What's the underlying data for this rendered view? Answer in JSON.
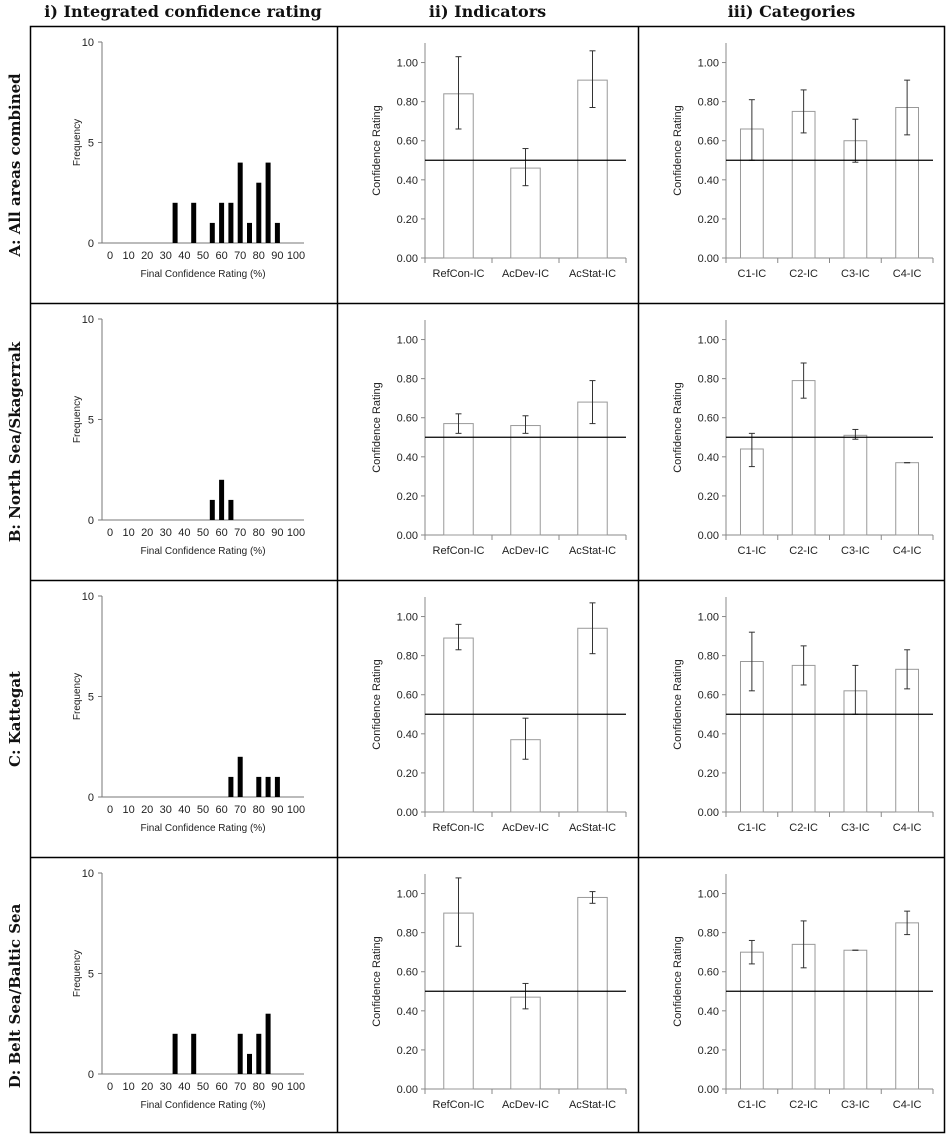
{
  "column_headers": [
    "i) Integrated confidence rating",
    "ii) Indicators",
    "iii) Categories"
  ],
  "row_headers": [
    "A: All areas combined",
    "B: North Sea/Skagerrak",
    "C: Kattegat",
    "D: Belt Sea/Baltic Sea"
  ],
  "chart_data": [
    {
      "id": "A-i",
      "type": "bar",
      "xlabel": "Final Confidence Rating (%)",
      "ylabel": "Frequency",
      "ylim": [
        0,
        10
      ],
      "yticks": [
        "0",
        "5",
        "10"
      ],
      "xticks": [
        "0",
        "10",
        "20",
        "30",
        "40",
        "50",
        "60",
        "70",
        "80",
        "90",
        "100"
      ],
      "x": [
        35,
        45,
        55,
        60,
        65,
        70,
        75,
        80,
        85,
        90
      ],
      "values": [
        2,
        2,
        1,
        2,
        2,
        4,
        1,
        3,
        4,
        1
      ]
    },
    {
      "id": "A-ii",
      "type": "bar",
      "ylabel": "Confidence Rating",
      "ylim": [
        0,
        1.1
      ],
      "yticks": [
        "0.00",
        "0.20",
        "0.40",
        "0.60",
        "0.80",
        "1.00"
      ],
      "reference_line": 0.5,
      "categories": [
        "RefCon-IC",
        "AcDev-IC",
        "AcStat-IC"
      ],
      "values": [
        0.84,
        0.46,
        0.91
      ],
      "err_low": [
        0.66,
        0.37,
        0.77
      ],
      "err_high": [
        1.03,
        0.56,
        1.06
      ]
    },
    {
      "id": "A-iii",
      "type": "bar",
      "ylabel": "Confidence Rating",
      "ylim": [
        0,
        1.1
      ],
      "yticks": [
        "0.00",
        "0.20",
        "0.40",
        "0.60",
        "0.80",
        "1.00"
      ],
      "reference_line": 0.5,
      "categories": [
        "C1-IC",
        "C2-IC",
        "C3-IC",
        "C4-IC"
      ],
      "values": [
        0.66,
        0.75,
        0.6,
        0.77
      ],
      "err_low": [
        0.5,
        0.64,
        0.49,
        0.63
      ],
      "err_high": [
        0.81,
        0.86,
        0.71,
        0.91
      ]
    },
    {
      "id": "B-i",
      "type": "bar",
      "xlabel": "Final Confidence Rating (%)",
      "ylabel": "Frequency",
      "ylim": [
        0,
        10
      ],
      "yticks": [
        "0",
        "5",
        "10"
      ],
      "xticks": [
        "0",
        "10",
        "20",
        "30",
        "40",
        "50",
        "60",
        "70",
        "80",
        "90",
        "100"
      ],
      "x": [
        55,
        60,
        65
      ],
      "values": [
        1,
        2,
        1
      ]
    },
    {
      "id": "B-ii",
      "type": "bar",
      "ylabel": "Confidence Rating",
      "ylim": [
        0,
        1.1
      ],
      "yticks": [
        "0.00",
        "0.20",
        "0.40",
        "0.60",
        "0.80",
        "1.00"
      ],
      "reference_line": 0.5,
      "categories": [
        "RefCon-IC",
        "AcDev-IC",
        "AcStat-IC"
      ],
      "values": [
        0.57,
        0.56,
        0.68
      ],
      "err_low": [
        0.52,
        0.52,
        0.57
      ],
      "err_high": [
        0.62,
        0.61,
        0.79
      ]
    },
    {
      "id": "B-iii",
      "type": "bar",
      "ylabel": "Confidence Rating",
      "ylim": [
        0,
        1.1
      ],
      "yticks": [
        "0.00",
        "0.20",
        "0.40",
        "0.60",
        "0.80",
        "1.00"
      ],
      "reference_line": 0.5,
      "categories": [
        "C1-IC",
        "C2-IC",
        "C3-IC",
        "C4-IC"
      ],
      "values": [
        0.44,
        0.79,
        0.51,
        0.37
      ],
      "err_low": [
        0.35,
        0.7,
        0.49,
        0.37
      ],
      "err_high": [
        0.52,
        0.88,
        0.54,
        0.37
      ]
    },
    {
      "id": "C-i",
      "type": "bar",
      "xlabel": "Final Confidence Rating (%)",
      "ylabel": "Frequency",
      "ylim": [
        0,
        10
      ],
      "yticks": [
        "0",
        "5",
        "10"
      ],
      "xticks": [
        "0",
        "10",
        "20",
        "30",
        "40",
        "50",
        "60",
        "70",
        "80",
        "90",
        "100"
      ],
      "x": [
        65,
        70,
        80,
        85,
        90
      ],
      "values": [
        1,
        2,
        1,
        1,
        1
      ]
    },
    {
      "id": "C-ii",
      "type": "bar",
      "ylabel": "Confidence Rating",
      "ylim": [
        0,
        1.1
      ],
      "yticks": [
        "0.00",
        "0.20",
        "0.40",
        "0.60",
        "0.80",
        "1.00"
      ],
      "reference_line": 0.5,
      "categories": [
        "RefCon-IC",
        "AcDev-IC",
        "AcStat-IC"
      ],
      "values": [
        0.89,
        0.37,
        0.94
      ],
      "err_low": [
        0.83,
        0.27,
        0.81
      ],
      "err_high": [
        0.96,
        0.48,
        1.07
      ]
    },
    {
      "id": "C-iii",
      "type": "bar",
      "ylabel": "Confidence Rating",
      "ylim": [
        0,
        1.1
      ],
      "yticks": [
        "0.00",
        "0.20",
        "0.40",
        "0.60",
        "0.80",
        "1.00"
      ],
      "reference_line": 0.5,
      "categories": [
        "C1-IC",
        "C2-IC",
        "C3-IC",
        "C4-IC"
      ],
      "values": [
        0.77,
        0.75,
        0.62,
        0.73
      ],
      "err_low": [
        0.62,
        0.65,
        0.5,
        0.63
      ],
      "err_high": [
        0.92,
        0.85,
        0.75,
        0.83
      ]
    },
    {
      "id": "D-i",
      "type": "bar",
      "xlabel": "Final Confidence Rating (%)",
      "ylabel": "Frequency",
      "ylim": [
        0,
        10
      ],
      "yticks": [
        "0",
        "5",
        "10"
      ],
      "xticks": [
        "0",
        "10",
        "20",
        "30",
        "40",
        "50",
        "60",
        "70",
        "80",
        "90",
        "100"
      ],
      "x": [
        35,
        45,
        70,
        75,
        80,
        85
      ],
      "values": [
        2,
        2,
        2,
        1,
        2,
        3
      ]
    },
    {
      "id": "D-ii",
      "type": "bar",
      "ylabel": "Confidence Rating",
      "ylim": [
        0,
        1.1
      ],
      "yticks": [
        "0.00",
        "0.20",
        "0.40",
        "0.60",
        "0.80",
        "1.00"
      ],
      "reference_line": 0.5,
      "categories": [
        "RefCon-IC",
        "AcDev-IC",
        "AcStat-IC"
      ],
      "values": [
        0.9,
        0.47,
        0.98
      ],
      "err_low": [
        0.73,
        0.41,
        0.95
      ],
      "err_high": [
        1.08,
        0.54,
        1.01
      ]
    },
    {
      "id": "D-iii",
      "type": "bar",
      "ylabel": "Confidence Rating",
      "ylim": [
        0,
        1.1
      ],
      "yticks": [
        "0.00",
        "0.20",
        "0.40",
        "0.60",
        "0.80",
        "1.00"
      ],
      "reference_line": 0.5,
      "categories": [
        "C1-IC",
        "C2-IC",
        "C3-IC",
        "C4-IC"
      ],
      "values": [
        0.7,
        0.74,
        0.71,
        0.85
      ],
      "err_low": [
        0.64,
        0.62,
        0.71,
        0.79
      ],
      "err_high": [
        0.76,
        0.86,
        0.71,
        0.91
      ]
    }
  ]
}
